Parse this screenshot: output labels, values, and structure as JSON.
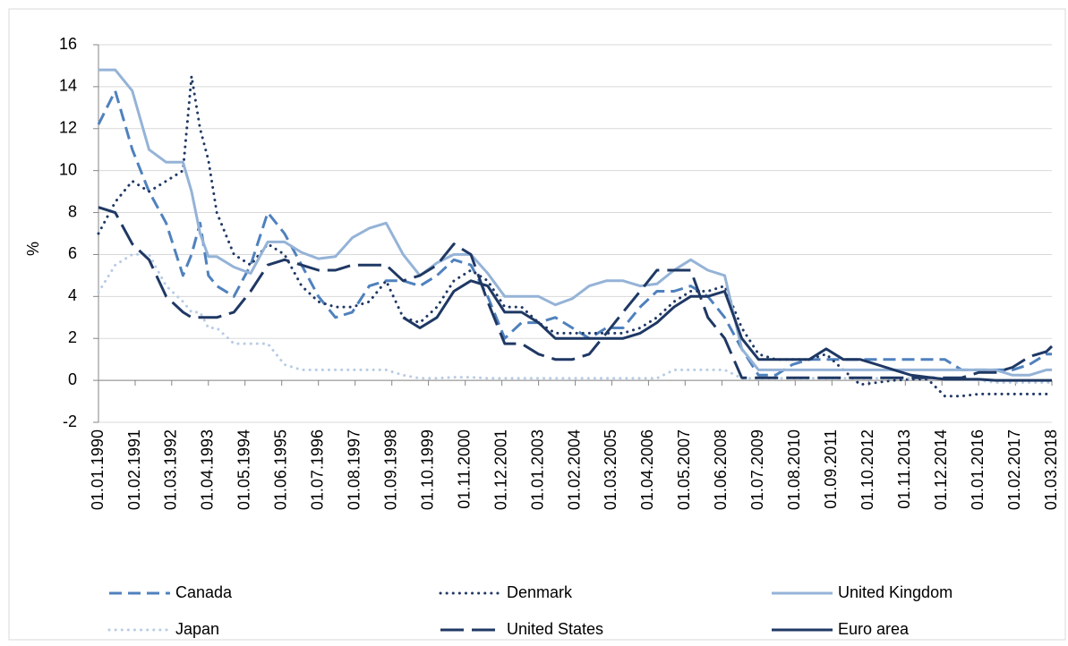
{
  "chart_data": {
    "type": "line",
    "y_label": "%",
    "x": [
      "1990-01-01",
      "1990-07-01",
      "1991-01-01",
      "1991-07-01",
      "1992-01-01",
      "1992-07-01",
      "1992-10-01",
      "1993-01-01",
      "1993-04-01",
      "1993-07-01",
      "1994-01-01",
      "1994-07-01",
      "1995-01-01",
      "1995-07-01",
      "1996-01-01",
      "1996-07-01",
      "1997-01-01",
      "1997-07-01",
      "1998-01-01",
      "1998-07-01",
      "1999-01-01",
      "1999-07-01",
      "2000-01-01",
      "2000-07-01",
      "2001-01-01",
      "2001-07-01",
      "2002-01-01",
      "2002-07-01",
      "2003-01-01",
      "2003-07-01",
      "2004-01-01",
      "2004-07-01",
      "2005-01-01",
      "2005-07-01",
      "2006-01-01",
      "2006-07-01",
      "2007-01-01",
      "2007-07-01",
      "2008-01-01",
      "2008-07-01",
      "2009-01-01",
      "2009-07-01",
      "2010-01-01",
      "2010-07-01",
      "2011-01-01",
      "2011-07-01",
      "2012-01-01",
      "2012-07-01",
      "2013-01-01",
      "2013-07-01",
      "2014-01-01",
      "2014-07-01",
      "2015-01-01",
      "2015-07-01",
      "2016-01-01",
      "2016-07-01",
      "2017-01-01",
      "2017-07-01",
      "2018-01-01",
      "2018-03-01"
    ],
    "series": [
      {
        "name": "Canada",
        "color": "#4f81bd",
        "dash": "dash",
        "values": [
          12.2,
          13.8,
          11,
          9,
          7.5,
          5,
          6,
          7.5,
          5,
          4.5,
          4,
          5.5,
          8,
          7,
          5.5,
          4,
          3,
          3.25,
          4.5,
          4.75,
          4.75,
          4.5,
          5,
          5.75,
          5.5,
          4,
          2,
          2.75,
          2.75,
          3,
          2.5,
          2,
          2.5,
          2.5,
          3.5,
          4.25,
          4.25,
          4.5,
          4,
          3,
          1.5,
          0.25,
          0.25,
          0.75,
          1,
          1,
          1,
          1,
          1,
          1,
          1,
          1,
          1,
          0.5,
          0.5,
          0.5,
          0.5,
          0.75,
          1.25,
          1.25
        ]
      },
      {
        "name": "Denmark",
        "color": "#1f3864",
        "dash": "dot",
        "values": [
          7,
          8.5,
          9.5,
          9,
          9.5,
          10,
          14.5,
          12,
          10.5,
          8,
          6,
          5.5,
          6.5,
          6,
          4.5,
          3.75,
          3.5,
          3.5,
          3.75,
          4.75,
          3,
          2.75,
          3.5,
          4.75,
          5.25,
          4.75,
          3.5,
          3.5,
          2.75,
          2.25,
          2.25,
          2.25,
          2.25,
          2.25,
          2.5,
          3,
          3.75,
          4.25,
          4.25,
          4.5,
          2.5,
          1.25,
          1,
          1,
          1,
          1.25,
          0.5,
          -0.2,
          -0.1,
          0,
          0.05,
          0.05,
          -0.75,
          -0.75,
          -0.65,
          -0.65,
          -0.65,
          -0.65,
          -0.65,
          -0.65
        ]
      },
      {
        "name": "United Kingdom",
        "color": "#95b3d7",
        "dash": "solid",
        "values": [
          14.8,
          14.8,
          13.8,
          11,
          10.4,
          10.4,
          9,
          7,
          5.9,
          5.9,
          5.4,
          5.1,
          6.6,
          6.6,
          6.1,
          5.8,
          5.9,
          6.8,
          7.25,
          7.5,
          6,
          5,
          5.6,
          6,
          6,
          5.1,
          4,
          4,
          4,
          3.6,
          3.9,
          4.5,
          4.75,
          4.75,
          4.5,
          4.6,
          5.25,
          5.75,
          5.25,
          5,
          1.5,
          0.5,
          0.5,
          0.5,
          0.5,
          0.5,
          0.5,
          0.5,
          0.5,
          0.5,
          0.5,
          0.5,
          0.5,
          0.5,
          0.5,
          0.5,
          0.25,
          0.25,
          0.5,
          0.5
        ]
      },
      {
        "name": "Japan",
        "color": "#b8cce4",
        "dash": "dot",
        "values": [
          4.2,
          5.5,
          6,
          6,
          4.5,
          3.75,
          3.25,
          3.25,
          2.5,
          2.5,
          1.75,
          1.75,
          1.75,
          0.75,
          0.5,
          0.5,
          0.5,
          0.5,
          0.5,
          0.5,
          0.25,
          0.1,
          0.1,
          0.15,
          0.15,
          0.1,
          0.1,
          0.1,
          0.1,
          0.1,
          0.1,
          0.1,
          0.1,
          0.1,
          0.1,
          0.1,
          0.5,
          0.5,
          0.5,
          0.5,
          0.1,
          0.1,
          0.1,
          0.1,
          0.1,
          0.1,
          0.1,
          0.1,
          0.1,
          0.1,
          0.1,
          0.1,
          0.1,
          0.1,
          0,
          -0.1,
          -0.1,
          -0.1,
          -0.1,
          -0.1
        ]
      },
      {
        "name": "United States",
        "color": "#1f3864",
        "dash": "longdash",
        "values": [
          8.25,
          8,
          6.5,
          5.75,
          4,
          3.25,
          3,
          3,
          3,
          3,
          3.25,
          4.25,
          5.5,
          5.75,
          5.5,
          5.25,
          5.25,
          5.5,
          5.5,
          5.5,
          4.75,
          5,
          5.5,
          6.5,
          6,
          3.75,
          1.75,
          1.75,
          1.25,
          1,
          1,
          1.25,
          2.25,
          3.25,
          4.25,
          5.25,
          5.25,
          5.25,
          3,
          2,
          0.125,
          0.125,
          0.125,
          0.125,
          0.125,
          0.125,
          0.125,
          0.125,
          0.125,
          0.125,
          0.125,
          0.125,
          0.125,
          0.125,
          0.375,
          0.375,
          0.625,
          1.125,
          1.375,
          1.625
        ]
      },
      {
        "name": "Euro area",
        "color": "#1f3864",
        "dash": "solid",
        "values": [
          null,
          null,
          null,
          null,
          null,
          null,
          null,
          null,
          null,
          null,
          null,
          null,
          null,
          null,
          null,
          null,
          null,
          null,
          null,
          null,
          3,
          2.5,
          3,
          4.25,
          4.75,
          4.5,
          3.25,
          3.25,
          2.75,
          2,
          2,
          2,
          2,
          2,
          2.25,
          2.75,
          3.5,
          4,
          4,
          4.25,
          2,
          1,
          1,
          1,
          1,
          1.5,
          1,
          1,
          0.75,
          0.5,
          0.25,
          0.15,
          0.05,
          0.05,
          0.05,
          0,
          0,
          0,
          0,
          0
        ]
      }
    ],
    "xlim": [
      "1990-01-01",
      "2018-03-01"
    ],
    "xticks": [
      {
        "value": "1990-01-01",
        "label": "01.01.1990"
      },
      {
        "value": "1991-02-01",
        "label": "01.02.1991"
      },
      {
        "value": "1992-03-01",
        "label": "01.03.1992"
      },
      {
        "value": "1993-04-01",
        "label": "01.04.1993"
      },
      {
        "value": "1994-05-01",
        "label": "01.05.1994"
      },
      {
        "value": "1995-06-01",
        "label": "01.06.1995"
      },
      {
        "value": "1996-07-01",
        "label": "01.07.1996"
      },
      {
        "value": "1997-08-01",
        "label": "01.08.1997"
      },
      {
        "value": "1998-09-01",
        "label": "01.09.1998"
      },
      {
        "value": "1999-10-01",
        "label": "01.10.1999"
      },
      {
        "value": "2000-11-01",
        "label": "01.11.2000"
      },
      {
        "value": "2001-12-01",
        "label": "01.12.2001"
      },
      {
        "value": "2003-01-01",
        "label": "01.01.2003"
      },
      {
        "value": "2004-02-01",
        "label": "01.02.2004"
      },
      {
        "value": "2005-03-01",
        "label": "01.03.2005"
      },
      {
        "value": "2006-04-01",
        "label": "01.04.2006"
      },
      {
        "value": "2007-05-01",
        "label": "01.05.2007"
      },
      {
        "value": "2008-06-01",
        "label": "01.06.2008"
      },
      {
        "value": "2009-07-01",
        "label": "01.07.2009"
      },
      {
        "value": "2010-08-01",
        "label": "01.08.2010"
      },
      {
        "value": "2011-09-01",
        "label": "01.09.2011"
      },
      {
        "value": "2012-10-01",
        "label": "01.10.2012"
      },
      {
        "value": "2013-11-01",
        "label": "01.11.2013"
      },
      {
        "value": "2014-12-01",
        "label": "01.12.2014"
      },
      {
        "value": "2016-01-01",
        "label": "01.01.2016"
      },
      {
        "value": "2017-02-01",
        "label": "01.02.2017"
      },
      {
        "value": "2018-03-01",
        "label": "01.03.2018"
      }
    ],
    "ylim": [
      -2,
      16
    ],
    "yticks": [
      -2,
      0,
      2,
      4,
      6,
      8,
      10,
      12,
      14,
      16
    ],
    "grid": true,
    "legend": "bottom"
  }
}
